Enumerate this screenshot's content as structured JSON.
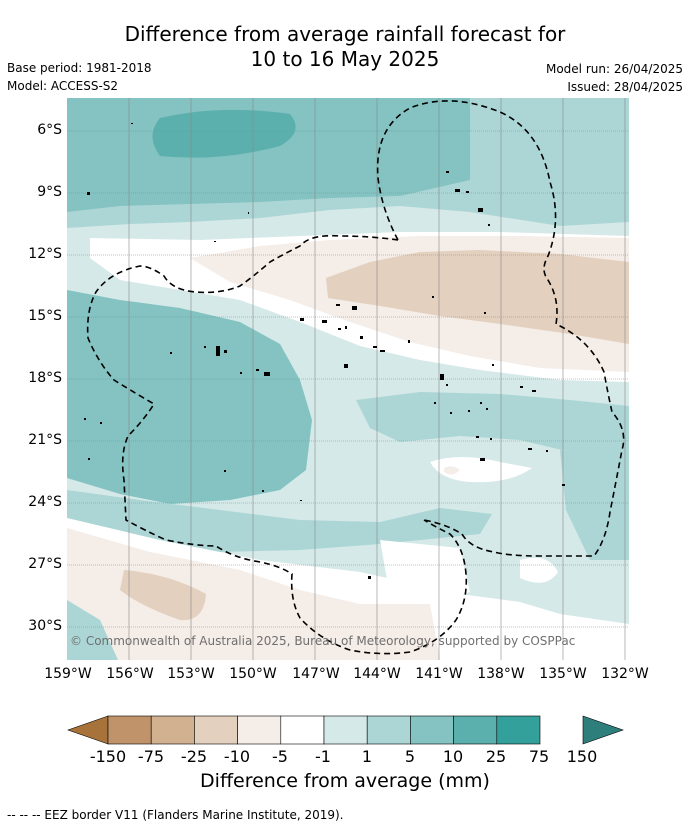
{
  "title_line1": "Difference from average rainfall forecast for",
  "title_line2": "10 to 16 May 2025",
  "base_period": "Base period: 1981-2018",
  "model": "Model: ACCESS-S2",
  "model_run": "Model run: 26/04/2025",
  "issued": "Issued: 28/04/2025",
  "lat_labels": [
    "6°S",
    "9°S",
    "12°S",
    "15°S",
    "18°S",
    "21°S",
    "24°S",
    "27°S",
    "30°S"
  ],
  "lon_labels": [
    "159°W",
    "156°W",
    "153°W",
    "150°W",
    "147°W",
    "144°W",
    "141°W",
    "138°W",
    "135°W",
    "132°W"
  ],
  "copyright": "© Commonwealth of Australia 2025, Bureau of Meteorology, supported by COSPPac",
  "colorbar": {
    "title": "Difference from average (mm)",
    "labels": [
      "-150",
      "-75",
      "-25",
      "-10",
      "-5",
      "-1",
      "1",
      "5",
      "10",
      "25",
      "75",
      "150"
    ],
    "colors": [
      "#a8733b",
      "#c0936a",
      "#d2b191",
      "#e3d0be",
      "#f5ede8",
      "#ffffff",
      "#d5e9e8",
      "#acd6d5",
      "#84c3c2",
      "#5bb0ae",
      "#33a09b",
      "#2e7f7c"
    ]
  },
  "footnote": "--  --  -- EEZ border V11 (Flanders Marine Institute, 2019)."
}
